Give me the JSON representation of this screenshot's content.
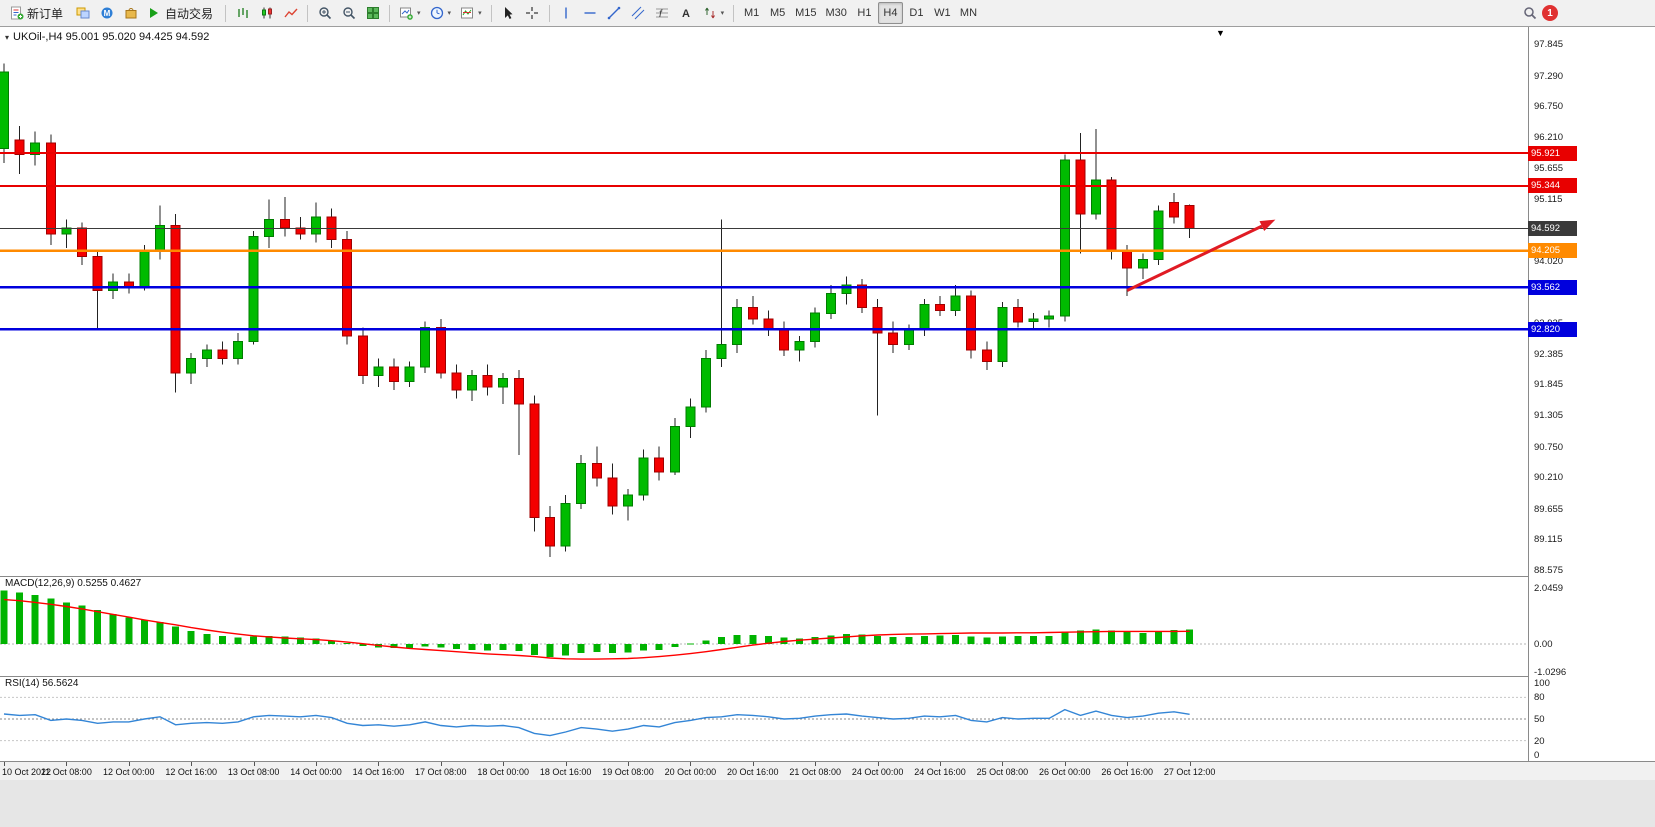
{
  "toolbar": {
    "new_order": "新订单",
    "auto_trading": "自动交易",
    "timeframes": [
      "M1",
      "M5",
      "M15",
      "M30",
      "H1",
      "H4",
      "D1",
      "W1",
      "MN"
    ],
    "active_timeframe": "H4",
    "notification_badge": "1"
  },
  "chart": {
    "header": "UKOil-,H4 95.001 95.020 94.425 94.592",
    "price_axis_ticks": [
      "97.845",
      "97.290",
      "96.750",
      "96.210",
      "95.655",
      "95.115",
      "94.575",
      "94.020",
      "93.480",
      "92.925",
      "92.385",
      "91.845",
      "91.305",
      "90.750",
      "90.210",
      "89.655",
      "89.115",
      "88.575"
    ],
    "time_axis_labels": [
      "10 Oct 2022",
      "11 Oct 08:00",
      "12 Oct 00:00",
      "12 Oct 16:00",
      "13 Oct 08:00",
      "14 Oct 00:00",
      "14 Oct 16:00",
      "17 Oct 08:00",
      "18 Oct 00:00",
      "18 Oct 16:00",
      "19 Oct 08:00",
      "20 Oct 00:00",
      "20 Oct 16:00",
      "21 Oct 08:00",
      "24 Oct 00:00",
      "24 Oct 16:00",
      "25 Oct 08:00",
      "26 Oct 00:00",
      "26 Oct 16:00",
      "27 Oct 12:00"
    ]
  },
  "chart_data": {
    "type": "candlestick",
    "symbol": "UKOil-",
    "timeframe": "H4",
    "ohlc_current": {
      "open": 95.001,
      "high": 95.02,
      "low": 94.425,
      "close": 94.592
    },
    "candles": [
      [
        96.0,
        97.5,
        95.75,
        97.35
      ],
      [
        96.15,
        96.4,
        95.55,
        95.9
      ],
      [
        95.9,
        96.3,
        95.7,
        96.1
      ],
      [
        96.1,
        96.25,
        94.3,
        94.5
      ],
      [
        94.5,
        94.75,
        94.25,
        94.6
      ],
      [
        94.6,
        94.7,
        93.95,
        94.1
      ],
      [
        94.1,
        94.2,
        92.8,
        93.5
      ],
      [
        93.5,
        93.8,
        93.35,
        93.65
      ],
      [
        93.65,
        93.8,
        93.45,
        93.55
      ],
      [
        93.55,
        94.3,
        93.5,
        94.2
      ],
      [
        94.2,
        95.0,
        94.05,
        94.65
      ],
      [
        94.65,
        94.85,
        91.7,
        92.05
      ],
      [
        92.05,
        92.4,
        91.85,
        92.3
      ],
      [
        92.3,
        92.55,
        92.15,
        92.45
      ],
      [
        92.45,
        92.6,
        92.2,
        92.3
      ],
      [
        92.3,
        92.75,
        92.2,
        92.6
      ],
      [
        92.6,
        94.55,
        92.55,
        94.45
      ],
      [
        94.45,
        95.1,
        94.25,
        94.75
      ],
      [
        94.75,
        95.15,
        94.45,
        94.6
      ],
      [
        94.6,
        94.8,
        94.4,
        94.5
      ],
      [
        94.5,
        95.05,
        94.35,
        94.8
      ],
      [
        94.8,
        94.95,
        94.25,
        94.4
      ],
      [
        94.4,
        94.55,
        92.55,
        92.7
      ],
      [
        92.7,
        92.85,
        91.85,
        92.0
      ],
      [
        92.0,
        92.3,
        91.8,
        92.15
      ],
      [
        92.15,
        92.3,
        91.75,
        91.9
      ],
      [
        91.9,
        92.25,
        91.8,
        92.15
      ],
      [
        92.15,
        92.95,
        92.05,
        92.85
      ],
      [
        92.85,
        93.0,
        91.95,
        92.05
      ],
      [
        92.05,
        92.2,
        91.6,
        91.75
      ],
      [
        91.75,
        92.1,
        91.55,
        92.0
      ],
      [
        92.0,
        92.2,
        91.65,
        91.8
      ],
      [
        91.8,
        92.05,
        91.5,
        91.95
      ],
      [
        91.95,
        92.1,
        90.6,
        91.5
      ],
      [
        91.5,
        91.65,
        89.25,
        89.5
      ],
      [
        89.5,
        89.7,
        88.8,
        89.0
      ],
      [
        89.0,
        89.9,
        88.9,
        89.75
      ],
      [
        89.75,
        90.6,
        89.65,
        90.45
      ],
      [
        90.45,
        90.75,
        90.05,
        90.2
      ],
      [
        90.2,
        90.45,
        89.55,
        89.7
      ],
      [
        89.7,
        90.0,
        89.45,
        89.9
      ],
      [
        89.9,
        90.7,
        89.8,
        90.55
      ],
      [
        90.55,
        90.75,
        90.15,
        90.3
      ],
      [
        90.3,
        91.25,
        90.25,
        91.1
      ],
      [
        91.1,
        91.6,
        90.9,
        91.45
      ],
      [
        91.45,
        92.45,
        91.35,
        92.3
      ],
      [
        92.3,
        94.75,
        92.15,
        92.55
      ],
      [
        92.55,
        93.35,
        92.4,
        93.2
      ],
      [
        93.2,
        93.4,
        92.9,
        93.0
      ],
      [
        93.0,
        93.15,
        92.7,
        92.8
      ],
      [
        92.8,
        92.95,
        92.35,
        92.45
      ],
      [
        92.45,
        92.7,
        92.25,
        92.6
      ],
      [
        92.6,
        93.2,
        92.5,
        93.1
      ],
      [
        93.1,
        93.6,
        93.0,
        93.45
      ],
      [
        93.45,
        93.75,
        93.25,
        93.6
      ],
      [
        93.6,
        93.7,
        93.1,
        93.2
      ],
      [
        93.2,
        93.35,
        91.3,
        92.75
      ],
      [
        92.75,
        92.95,
        92.4,
        92.55
      ],
      [
        92.55,
        92.9,
        92.45,
        92.8
      ],
      [
        92.8,
        93.35,
        92.7,
        93.25
      ],
      [
        93.25,
        93.4,
        93.05,
        93.15
      ],
      [
        93.15,
        93.6,
        93.05,
        93.4
      ],
      [
        93.4,
        93.5,
        92.3,
        92.45
      ],
      [
        92.45,
        92.6,
        92.1,
        92.25
      ],
      [
        92.25,
        93.3,
        92.15,
        93.2
      ],
      [
        93.2,
        93.35,
        92.85,
        92.95
      ],
      [
        92.95,
        93.1,
        92.8,
        93.0
      ],
      [
        93.0,
        93.15,
        92.85,
        93.05
      ],
      [
        93.05,
        95.9,
        92.95,
        95.8
      ],
      [
        95.8,
        96.28,
        94.15,
        94.85
      ],
      [
        94.85,
        96.35,
        94.75,
        95.45
      ],
      [
        95.45,
        95.5,
        94.05,
        94.2
      ],
      [
        94.2,
        94.3,
        93.4,
        93.9
      ],
      [
        93.9,
        94.15,
        93.7,
        94.05
      ],
      [
        94.05,
        95.0,
        93.95,
        94.9
      ],
      [
        95.05,
        95.22,
        94.68,
        94.8
      ],
      [
        95.001,
        95.02,
        94.425,
        94.592
      ]
    ],
    "levels": [
      {
        "price": 95.921,
        "label": "95.921",
        "color": "#e80000",
        "width": 2
      },
      {
        "price": 95.344,
        "label": "95.344",
        "color": "#e80000",
        "width": 2
      },
      {
        "price": 94.205,
        "label": "94.205",
        "color": "#ff8a00",
        "width": 2.5
      },
      {
        "price": 93.562,
        "label": "93.562",
        "color": "#0000dd",
        "width": 2.5
      },
      {
        "price": 92.82,
        "label": "92.820",
        "color": "#0000dd",
        "width": 2.5
      },
      {
        "price": 94.592,
        "label": "94.592",
        "color": "#3a3a3a",
        "width": 1.2,
        "role": "current-price"
      }
    ],
    "arrow": {
      "from": {
        "index": 72,
        "price": 93.5
      },
      "to": {
        "index": 81.5,
        "price": 94.75
      },
      "color": "#e01b24"
    },
    "indicators": {
      "macd": {
        "label": "MACD(12,26,9) 0.5255 0.4627",
        "axis_ticks": [
          "2.0459",
          "0.00",
          "-1.0296"
        ],
        "histogram_color": "#00b300",
        "signal_color": "#ff0000",
        "histogram": [
          1.95,
          1.88,
          1.78,
          1.66,
          1.52,
          1.4,
          1.25,
          1.1,
          0.97,
          0.87,
          0.8,
          0.64,
          0.47,
          0.37,
          0.3,
          0.24,
          0.27,
          0.3,
          0.28,
          0.24,
          0.2,
          0.13,
          0.03,
          -0.07,
          -0.12,
          -0.15,
          -0.14,
          -0.1,
          -0.13,
          -0.18,
          -0.21,
          -0.23,
          -0.21,
          -0.26,
          -0.4,
          -0.48,
          -0.42,
          -0.32,
          -0.29,
          -0.33,
          -0.31,
          -0.23,
          -0.21,
          -0.11,
          0.01,
          0.13,
          0.26,
          0.33,
          0.33,
          0.29,
          0.23,
          0.2,
          0.25,
          0.31,
          0.36,
          0.34,
          0.29,
          0.25,
          0.25,
          0.29,
          0.31,
          0.33,
          0.28,
          0.23,
          0.27,
          0.29,
          0.29,
          0.29,
          0.46,
          0.49,
          0.53,
          0.49,
          0.43,
          0.41,
          0.46,
          0.51,
          0.5255
        ],
        "signal": [
          1.62,
          1.58,
          1.52,
          1.45,
          1.37,
          1.28,
          1.18,
          1.08,
          0.98,
          0.88,
          0.79,
          0.7,
          0.6,
          0.51,
          0.43,
          0.36,
          0.3,
          0.26,
          0.22,
          0.19,
          0.16,
          0.12,
          0.07,
          0.01,
          -0.05,
          -0.11,
          -0.16,
          -0.2,
          -0.24,
          -0.28,
          -0.32,
          -0.36,
          -0.39,
          -0.42,
          -0.46,
          -0.51,
          -0.54,
          -0.55,
          -0.55,
          -0.54,
          -0.53,
          -0.5,
          -0.46,
          -0.41,
          -0.35,
          -0.28,
          -0.2,
          -0.12,
          -0.04,
          0.03,
          0.09,
          0.14,
          0.18,
          0.22,
          0.26,
          0.3,
          0.33,
          0.35,
          0.36,
          0.37,
          0.38,
          0.39,
          0.4,
          0.4,
          0.4,
          0.41,
          0.41,
          0.42,
          0.43,
          0.44,
          0.45,
          0.46,
          0.46,
          0.46,
          0.46,
          0.46,
          0.4627
        ]
      },
      "rsi": {
        "label": "RSI(14) 56.5624",
        "axis_ticks": [
          "100",
          "80",
          "50",
          "20",
          "0"
        ],
        "levels_dotted": [
          80,
          50,
          20
        ],
        "line_color": "#3385d6",
        "values": [
          57,
          55,
          56,
          48,
          50,
          48,
          44,
          46,
          46,
          50,
          53,
          42,
          44,
          45,
          44,
          46,
          53,
          55,
          54,
          53,
          55,
          52,
          44,
          41,
          42,
          40,
          42,
          46,
          41,
          39,
          41,
          40,
          41,
          38,
          30,
          27,
          32,
          38,
          36,
          33,
          36,
          41,
          39,
          45,
          48,
          52,
          53,
          56,
          55,
          53,
          50,
          51,
          54,
          56,
          57,
          54,
          52,
          50,
          51,
          54,
          53,
          55,
          48,
          46,
          52,
          50,
          51,
          51,
          63,
          55,
          61,
          55,
          52,
          54,
          58,
          60,
          56.5624
        ]
      }
    }
  },
  "colors": {
    "bull": "#00bb00",
    "bull_border": "#007d00",
    "bear": "#f40000",
    "bear_border": "#a00000",
    "wick": "#222222"
  }
}
